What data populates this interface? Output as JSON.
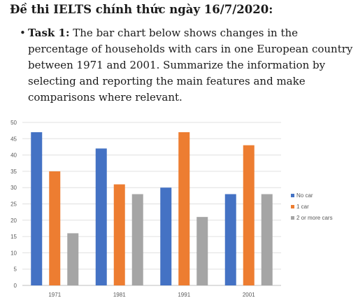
{
  "heading": "Đề thi IELTS chính thức ngày 16/7/2020:",
  "task": {
    "bullet": "•",
    "label": "Task 1:",
    "text": " The bar chart below shows changes in the percentage of households with cars in one European country between 1971 and 2001. Summarize the information by selecting and reporting the main features and make comparisons where relevant."
  },
  "chart_data": {
    "type": "bar",
    "categories": [
      "1971",
      "1981",
      "1991",
      "2001"
    ],
    "series": [
      {
        "name": "No car",
        "values": [
          47,
          42,
          30,
          28
        ],
        "color": "#4472C4"
      },
      {
        "name": "1 car",
        "values": [
          35,
          31,
          47,
          43
        ],
        "color": "#ED7D31"
      },
      {
        "name": "2 or more cars",
        "values": [
          16,
          28,
          21,
          28
        ],
        "color": "#A5A5A5"
      }
    ],
    "yticks": [
      "0",
      "5",
      "10",
      "15",
      "20",
      "25",
      "30",
      "35",
      "40",
      "45",
      "50"
    ],
    "ylim": [
      0,
      50
    ],
    "grid": true,
    "legend": "right"
  }
}
